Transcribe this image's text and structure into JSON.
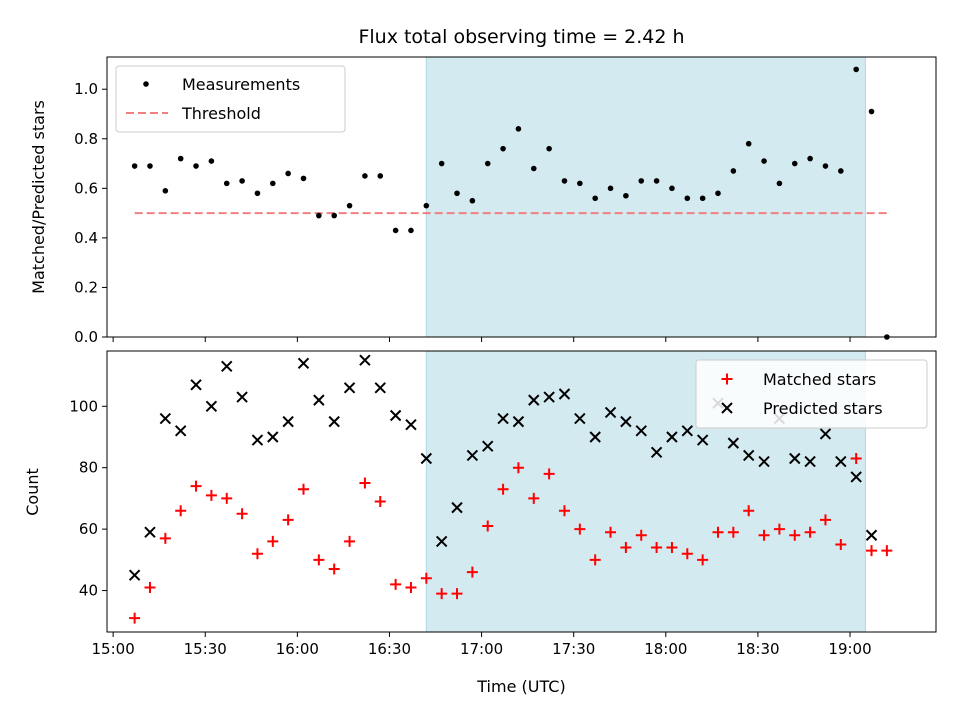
{
  "chart_data": [
    {
      "type": "scatter",
      "title": "Flux total observing time = 2.42 h",
      "xlabel": "",
      "ylabel": "Matched/Predicted stars",
      "ylim": [
        0,
        1.13
      ],
      "yticks": [
        "0.0",
        "0.2",
        "0.4",
        "0.6",
        "0.8",
        "1.0"
      ],
      "ytick_values": [
        0,
        0.2,
        0.4,
        0.6,
        0.8,
        1.0
      ],
      "legend_position": "top-left",
      "highlight_span": {
        "start": "16:42",
        "end": "19:05",
        "color": "#d4eaf1"
      },
      "series": [
        {
          "name": "Measurements",
          "style": "points",
          "color": "#000000",
          "x": [
            "15:07",
            "15:12",
            "15:17",
            "15:22",
            "15:27",
            "15:32",
            "15:37",
            "15:42",
            "15:47",
            "15:52",
            "15:57",
            "16:02",
            "16:07",
            "16:12",
            "16:17",
            "16:22",
            "16:27",
            "16:32",
            "16:37",
            "16:42",
            "16:47",
            "16:52",
            "16:57",
            "17:02",
            "17:07",
            "17:12",
            "17:17",
            "17:22",
            "17:27",
            "17:32",
            "17:37",
            "17:42",
            "17:47",
            "17:52",
            "17:57",
            "18:02",
            "18:07",
            "18:12",
            "18:17",
            "18:22",
            "18:27",
            "18:32",
            "18:37",
            "18:42",
            "18:47",
            "18:52",
            "18:57",
            "19:02",
            "19:07",
            "19:12"
          ],
          "y": [
            0.69,
            0.69,
            0.59,
            0.72,
            0.69,
            0.71,
            0.62,
            0.63,
            0.58,
            0.62,
            0.66,
            0.64,
            0.49,
            0.49,
            0.53,
            0.65,
            0.65,
            0.43,
            0.43,
            0.53,
            0.7,
            0.58,
            0.55,
            0.7,
            0.76,
            0.84,
            0.68,
            0.76,
            0.63,
            0.62,
            0.56,
            0.6,
            0.57,
            0.63,
            0.63,
            0.6,
            0.56,
            0.56,
            0.58,
            0.67,
            0.78,
            0.71,
            0.62,
            0.7,
            0.72,
            0.69,
            0.67,
            1.08,
            0.91,
            0.0
          ]
        },
        {
          "name": "Threshold",
          "style": "dashed-line",
          "color": "#f08080",
          "x": [
            "15:07",
            "19:12"
          ],
          "y": [
            0.5,
            0.5
          ]
        }
      ]
    },
    {
      "type": "scatter",
      "title": "",
      "xlabel": "Time (UTC)",
      "ylabel": "Count",
      "ylim": [
        26.5,
        118
      ],
      "yticks": [
        "40",
        "60",
        "80",
        "100"
      ],
      "ytick_values": [
        40,
        60,
        80,
        100
      ],
      "xlim": [
        "14:58",
        "19:28"
      ],
      "xticks": [
        "15:00",
        "15:30",
        "16:00",
        "16:30",
        "17:00",
        "17:30",
        "18:00",
        "18:30",
        "19:00"
      ],
      "legend_position": "top-right",
      "highlight_span": {
        "start": "16:42",
        "end": "19:05",
        "color": "#d4eaf1"
      },
      "series": [
        {
          "name": "Matched stars",
          "marker": "plus",
          "color": "#ff0000",
          "x": [
            "15:07",
            "15:12",
            "15:17",
            "15:22",
            "15:27",
            "15:32",
            "15:37",
            "15:42",
            "15:47",
            "15:52",
            "15:57",
            "16:02",
            "16:07",
            "16:12",
            "16:17",
            "16:22",
            "16:27",
            "16:32",
            "16:37",
            "16:42",
            "16:47",
            "16:52",
            "16:57",
            "17:02",
            "17:07",
            "17:12",
            "17:17",
            "17:22",
            "17:27",
            "17:32",
            "17:37",
            "17:42",
            "17:47",
            "17:52",
            "17:57",
            "18:02",
            "18:07",
            "18:12",
            "18:17",
            "18:22",
            "18:27",
            "18:32",
            "18:37",
            "18:42",
            "18:47",
            "18:52",
            "18:57",
            "19:02",
            "19:07",
            "19:12"
          ],
          "y": [
            31,
            41,
            57,
            66,
            74,
            71,
            70,
            65,
            52,
            56,
            63,
            73,
            50,
            47,
            56,
            75,
            69,
            42,
            41,
            44,
            39,
            39,
            46,
            61,
            73,
            80,
            70,
            78,
            66,
            60,
            50,
            59,
            54,
            58,
            54,
            54,
            52,
            50,
            59,
            59,
            66,
            58,
            60,
            58,
            59,
            63,
            55,
            83,
            53,
            53
          ]
        },
        {
          "name": "Predicted stars",
          "marker": "x",
          "color": "#000000",
          "x": [
            "15:07",
            "15:12",
            "15:17",
            "15:22",
            "15:27",
            "15:32",
            "15:37",
            "15:42",
            "15:47",
            "15:52",
            "15:57",
            "16:02",
            "16:07",
            "16:12",
            "16:17",
            "16:22",
            "16:27",
            "16:32",
            "16:37",
            "16:42",
            "16:47",
            "16:52",
            "16:57",
            "17:02",
            "17:07",
            "17:12",
            "17:17",
            "17:22",
            "17:27",
            "17:32",
            "17:37",
            "17:42",
            "17:47",
            "17:52",
            "17:57",
            "18:02",
            "18:07",
            "18:12",
            "18:17",
            "18:22",
            "18:27",
            "18:32",
            "18:37",
            "18:42",
            "18:47",
            "18:52",
            "18:57",
            "19:02",
            "19:07"
          ],
          "y": [
            45,
            59,
            96,
            92,
            107,
            100,
            113,
            103,
            89,
            90,
            95,
            114,
            102,
            95,
            106,
            115,
            106,
            97,
            94,
            83,
            56,
            67,
            84,
            87,
            96,
            95,
            102,
            103,
            104,
            96,
            90,
            98,
            95,
            92,
            85,
            90,
            92,
            89,
            101,
            88,
            84,
            82,
            96,
            83,
            82,
            91,
            82,
            77,
            58
          ]
        }
      ]
    }
  ]
}
